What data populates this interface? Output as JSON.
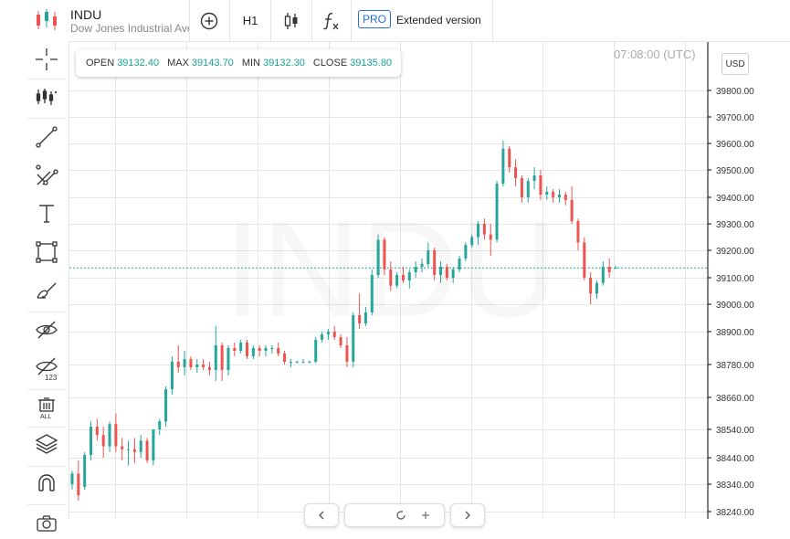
{
  "header": {
    "symbol": "INDU",
    "name": "Dow Jones Industrial Average",
    "timeframe": "H1",
    "pro_badge": "PRO",
    "extended_label": "Extended version"
  },
  "legend": {
    "open_label": "OPEN",
    "open": "39132.40",
    "max_label": "MAX",
    "max": "39143.70",
    "min_label": "MIN",
    "min": "39132.30",
    "close_label": "CLOSE",
    "close": "39135.80"
  },
  "time_label": "07:08:00 (UTC)",
  "currency": "USD",
  "watermark": "INDU",
  "icons": {
    "toolbar": [
      "plus-circle-icon",
      "candles-icon",
      "fx-icon"
    ],
    "left": [
      "crosshair-icon",
      "indicators-icon",
      "trend-line-icon",
      "pitchfork-icon",
      "text-icon",
      "rectangle-icon",
      "brush-icon",
      "hide-drawings-icon",
      "hide-labels-icon",
      "delete-all-icon",
      "layers-icon",
      "magnet-icon",
      "camera-icon"
    ]
  },
  "colors": {
    "up": "#26a69a",
    "down": "#ef5350",
    "price_line": "#26a69a"
  },
  "chart_data": {
    "type": "candlestick",
    "y_ticks": [
      "39800.00",
      "39700.00",
      "39600.00",
      "39500.00",
      "39400.00",
      "39300.00",
      "39200.00",
      "39100.00",
      "39000.00",
      "38900.00",
      "38780.00",
      "38660.00",
      "38540.00",
      "38440.00",
      "38340.00",
      "38240.00"
    ],
    "ylim": [
      38230,
      39965
    ],
    "grid": true,
    "last_price": 39135.8,
    "candles": [
      [
        38340,
        38390,
        38320,
        38380
      ],
      [
        38380,
        38430,
        38280,
        38300
      ],
      [
        38330,
        38460,
        38320,
        38450
      ],
      [
        38450,
        38570,
        38430,
        38550
      ],
      [
        38550,
        38580,
        38500,
        38520
      ],
      [
        38520,
        38550,
        38440,
        38480
      ],
      [
        38480,
        38570,
        38460,
        38560
      ],
      [
        38560,
        38600,
        38460,
        38480
      ],
      [
        38480,
        38510,
        38430,
        38470
      ],
      [
        38470,
        38500,
        38410,
        38470
      ],
      [
        38470,
        38510,
        38420,
        38460
      ],
      [
        38460,
        38520,
        38440,
        38500
      ],
      [
        38500,
        38510,
        38420,
        38430
      ],
      [
        38430,
        38540,
        38410,
        38540
      ],
      [
        38540,
        38580,
        38520,
        38570
      ],
      [
        38570,
        38700,
        38550,
        38690
      ],
      [
        38690,
        38810,
        38670,
        38790
      ],
      [
        38790,
        38850,
        38750,
        38770
      ],
      [
        38770,
        38830,
        38740,
        38800
      ],
      [
        38800,
        38810,
        38760,
        38770
      ],
      [
        38770,
        38800,
        38750,
        38780
      ],
      [
        38780,
        38800,
        38760,
        38770
      ],
      [
        38770,
        38790,
        38740,
        38760
      ],
      [
        38760,
        38920,
        38720,
        38850
      ],
      [
        38850,
        38860,
        38720,
        38760
      ],
      [
        38760,
        38850,
        38740,
        38840
      ],
      [
        38840,
        38860,
        38810,
        38830
      ],
      [
        38830,
        38870,
        38820,
        38860
      ],
      [
        38860,
        38870,
        38800,
        38810
      ],
      [
        38810,
        38850,
        38800,
        38840
      ],
      [
        38840,
        38850,
        38810,
        38830
      ],
      [
        38830,
        38850,
        38810,
        38840
      ],
      [
        38840,
        38850,
        38820,
        38840
      ],
      [
        38840,
        38860,
        38810,
        38820
      ],
      [
        38820,
        38830,
        38780,
        38790
      ],
      [
        38790,
        38800,
        38770,
        38790
      ],
      [
        38790,
        38795,
        38785,
        38790
      ],
      [
        38790,
        38800,
        38785,
        38790
      ],
      [
        38790,
        38795,
        38785,
        38790
      ],
      [
        38790,
        38880,
        38785,
        38870
      ],
      [
        38870,
        38900,
        38860,
        38890
      ],
      [
        38890,
        38910,
        38870,
        38900
      ],
      [
        38900,
        38920,
        38870,
        38880
      ],
      [
        38880,
        38890,
        38840,
        38850
      ],
      [
        38850,
        38880,
        38770,
        38790
      ],
      [
        38790,
        38970,
        38770,
        38960
      ],
      [
        38960,
        39040,
        38910,
        38930
      ],
      [
        38930,
        38990,
        38920,
        38970
      ],
      [
        38970,
        39130,
        38960,
        39110
      ],
      [
        39110,
        39260,
        39100,
        39240
      ],
      [
        39240,
        39250,
        39110,
        39130
      ],
      [
        39130,
        39160,
        39050,
        39070
      ],
      [
        39070,
        39120,
        39060,
        39110
      ],
      [
        39110,
        39140,
        39080,
        39090
      ],
      [
        39090,
        39130,
        39060,
        39120
      ],
      [
        39120,
        39160,
        39100,
        39140
      ],
      [
        39140,
        39170,
        39120,
        39150
      ],
      [
        39150,
        39230,
        39140,
        39200
      ],
      [
        39200,
        39210,
        39090,
        39110
      ],
      [
        39110,
        39160,
        39080,
        39140
      ],
      [
        39140,
        39150,
        39090,
        39100
      ],
      [
        39100,
        39140,
        39080,
        39130
      ],
      [
        39130,
        39180,
        39120,
        39170
      ],
      [
        39170,
        39230,
        39160,
        39220
      ],
      [
        39220,
        39260,
        39210,
        39250
      ],
      [
        39250,
        39310,
        39220,
        39300
      ],
      [
        39300,
        39320,
        39240,
        39260
      ],
      [
        39260,
        39300,
        39180,
        39240
      ],
      [
        39240,
        39460,
        39230,
        39450
      ],
      [
        39450,
        39610,
        39440,
        39580
      ],
      [
        39580,
        39590,
        39490,
        39510
      ],
      [
        39510,
        39540,
        39440,
        39470
      ],
      [
        39470,
        39480,
        39380,
        39400
      ],
      [
        39400,
        39470,
        39380,
        39460
      ],
      [
        39460,
        39510,
        39430,
        39480
      ],
      [
        39480,
        39500,
        39390,
        39410
      ],
      [
        39410,
        39440,
        39390,
        39420
      ],
      [
        39420,
        39430,
        39380,
        39400
      ],
      [
        39400,
        39430,
        39380,
        39410
      ],
      [
        39410,
        39420,
        39370,
        39390
      ],
      [
        39390,
        39440,
        39300,
        39310
      ],
      [
        39310,
        39320,
        39200,
        39230
      ],
      [
        39230,
        39250,
        39090,
        39100
      ],
      [
        39100,
        39120,
        39000,
        39040
      ],
      [
        39040,
        39090,
        39020,
        39080
      ],
      [
        39080,
        39160,
        39070,
        39140
      ],
      [
        39140,
        39170,
        39100,
        39120
      ],
      [
        39132.4,
        39143.7,
        39132.3,
        39135.8
      ]
    ]
  }
}
